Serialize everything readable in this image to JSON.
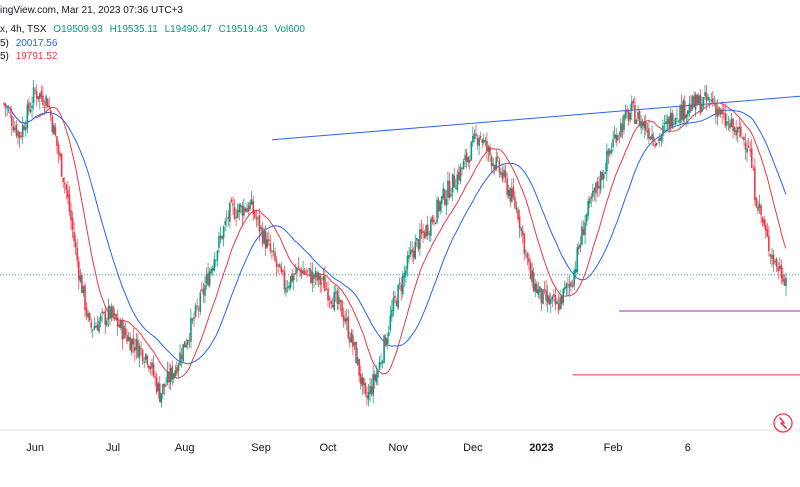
{
  "header": {
    "source_fragment": "ingView.com, Mar 21, 2023 07:36 UTC+3",
    "symbol_fragment": "x, 4h, TSX",
    "open": "O19509.93",
    "high": "H19535.11",
    "low": "L19490.47",
    "close": "C19519.43",
    "volume": "Vol600"
  },
  "moving_averages": [
    {
      "label_fragment": "5)",
      "value": "20017.56",
      "color": "#2962ff"
    },
    {
      "label_fragment": "5)",
      "value": "19791.52",
      "color": "#f23645"
    }
  ],
  "chart_data": {
    "type": "candlestick",
    "title": "",
    "x_tick_labels": [
      "Jun",
      "Jul",
      "Aug",
      "Sep",
      "Oct",
      "Nov",
      "Dec",
      "2023",
      "Feb",
      "6"
    ],
    "current_price": 19519.43,
    "approx_y_range": [
      18450,
      21000
    ],
    "moving_average_slow_recent": 20017.56,
    "moving_average_fast_recent": 19791.52,
    "trendline_color": "#2962ff",
    "support_level_color": "#9c27b0",
    "support_levels": [
      19270,
      18830
    ],
    "colors": {
      "up": "#089981",
      "down": "#f23645",
      "ma_slow": "#2962ff",
      "ma_fast": "#f23645",
      "last_price_line": "#089981"
    },
    "grid": false,
    "legend": "top-left"
  },
  "icons": {
    "bottom_right": "tradingview-logo-icon"
  }
}
